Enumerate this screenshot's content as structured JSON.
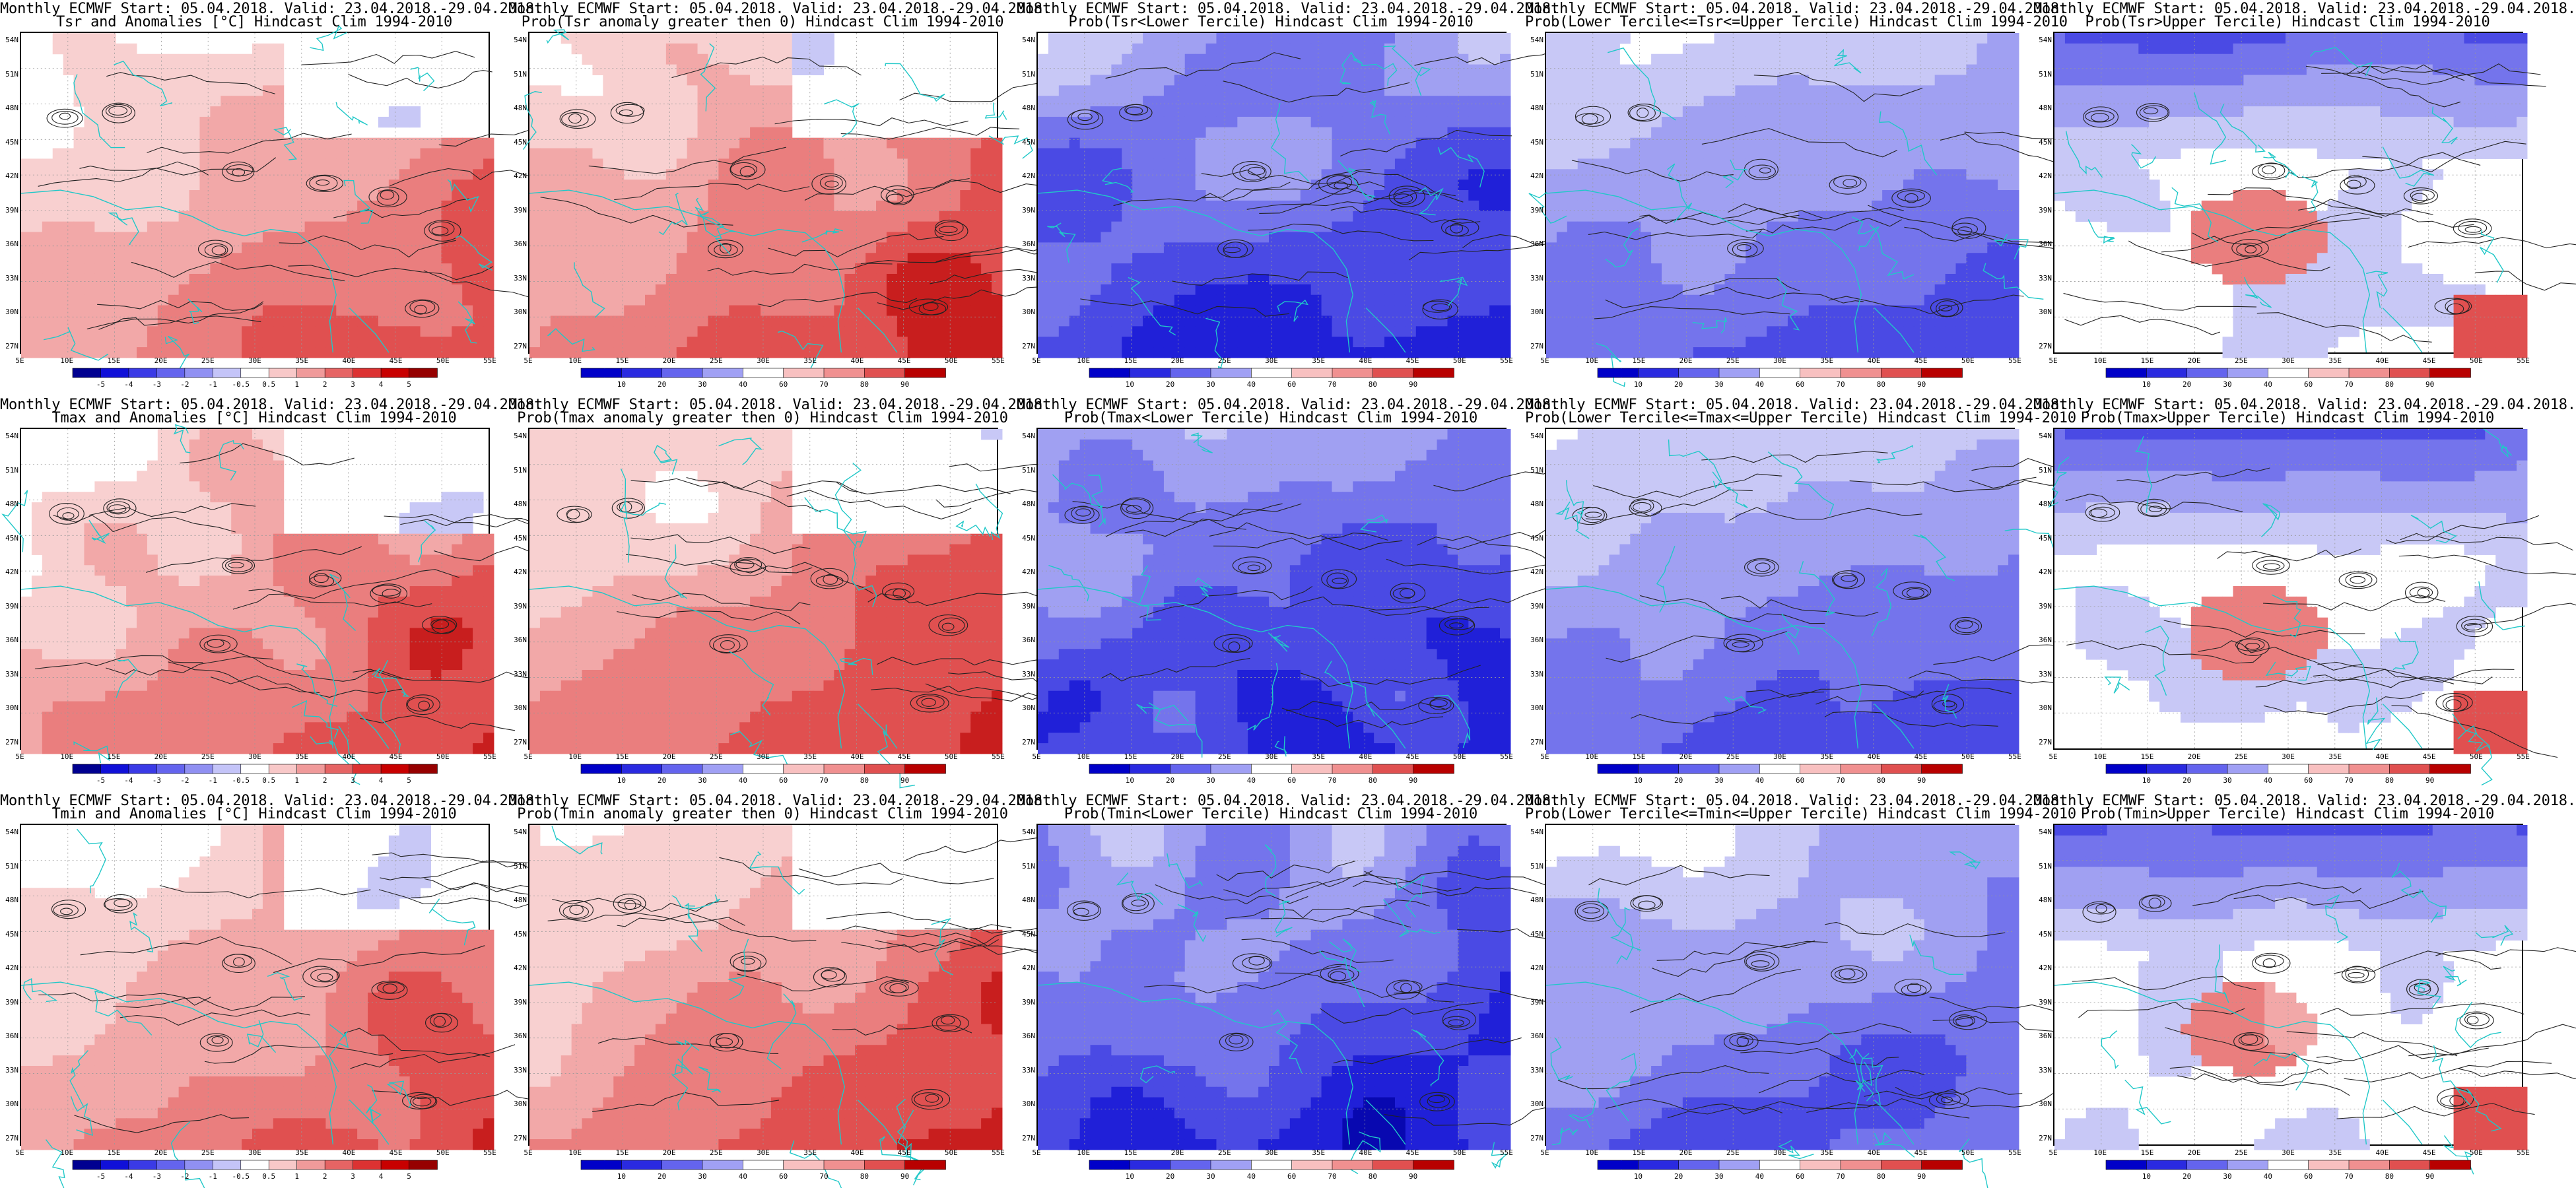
{
  "page": {
    "columns": 5,
    "rows": 3
  },
  "axis": {
    "lat_labels": [
      "54N",
      "51N",
      "48N",
      "45N",
      "42N",
      "39N",
      "36N",
      "33N",
      "30N",
      "27N"
    ],
    "lon_labels": [
      "5E",
      "10E",
      "15E",
      "20E",
      "25E",
      "30E",
      "35E",
      "40E",
      "45E",
      "50E",
      "55E"
    ]
  },
  "colorbars": {
    "anomaly": {
      "labels": [
        "-5",
        "-4",
        "-3",
        "-2",
        "-1",
        "-0.5",
        "0.5",
        "1",
        "2",
        "3",
        "4",
        "5"
      ],
      "colors": [
        "#000090",
        "#1010d8",
        "#3a3ae6",
        "#6464ee",
        "#9090f2",
        "#c4c4f8",
        "#ffffff",
        "#f8c8c8",
        "#f09a9a",
        "#e66464",
        "#dc3232",
        "#c80000",
        "#960000"
      ]
    },
    "probability": {
      "labels": [
        "10",
        "20",
        "30",
        "40",
        "60",
        "70",
        "80",
        "90"
      ],
      "colors": [
        "#0000c8",
        "#2a2ae0",
        "#6464ee",
        "#a0a0f4",
        "#ffffff",
        "#f8c0c0",
        "#f09090",
        "#e05050",
        "#b80000"
      ]
    }
  },
  "panels": [
    {
      "id": "tsr-anom",
      "var": "Tsr",
      "kind": "anomaly",
      "title1": "Monthly ECMWF Start: 05.04.2018. Valid: 23.04.2018.-29.04.2018.",
      "title2": "Tsr and Anomalies [°C] Hindcast Clim 1994-2010",
      "colorbar": "anomaly",
      "tone": "warm",
      "intensity": 0.45
    },
    {
      "id": "tsr-prob-pos",
      "var": "Tsr",
      "kind": "prob_positive",
      "title1": "Monthly ECMWF Start: 05.04.2018. Valid: 23.04.2018.-29.04.2018.",
      "title2": "Prob(Tsr anomaly greater then 0) Hindcast Clim 1994-2010",
      "colorbar": "probability",
      "tone": "warm",
      "intensity": 0.6
    },
    {
      "id": "tsr-prob-lower",
      "var": "Tsr",
      "kind": "prob_lower",
      "title1": "Monthly ECMWF Start: 05.04.2018. Valid: 23.04.2018.-29.04.2018.",
      "title2": "Prob(Tsr<Lower Tercile) Hindcast Clim 1994-2010",
      "colorbar": "probability",
      "tone": "cold",
      "intensity": 0.9
    },
    {
      "id": "tsr-prob-middle",
      "var": "Tsr",
      "kind": "prob_middle",
      "title1": "Monthly ECMWF Start: 05.04.2018. Valid: 23.04.2018.-29.04.2018.",
      "title2": "Prob(Lower Tercile<=Tsr<=Upper Tercile) Hindcast Clim 1994-2010",
      "colorbar": "probability",
      "tone": "cold",
      "intensity": 0.55
    },
    {
      "id": "tsr-prob-upper",
      "var": "Tsr",
      "kind": "prob_upper",
      "title1": "Monthly ECMWF Start: 05.04.2018. Valid: 23.04.2018.-29.04.2018.",
      "title2": "Prob(Tsr>Upper Tercile) Hindcast Clim 1994-2010",
      "colorbar": "probability",
      "tone": "mixed",
      "intensity": 0.6
    },
    {
      "id": "tmax-anom",
      "var": "Tmax",
      "kind": "anomaly",
      "title1": "Monthly ECMWF Start: 05.04.2018. Valid: 23.04.2018.-29.04.2018.",
      "title2": "Tmax and Anomalies [°C] Hindcast Clim 1994-2010",
      "colorbar": "anomaly",
      "tone": "warm",
      "intensity": 0.5
    },
    {
      "id": "tmax-prob-pos",
      "var": "Tmax",
      "kind": "prob_positive",
      "title1": "Monthly ECMWF Start: 05.04.2018. Valid: 23.04.2018.-29.04.2018.",
      "title2": "Prob(Tmax anomaly greater then 0) Hindcast Clim 1994-2010",
      "colorbar": "probability",
      "tone": "warm",
      "intensity": 0.6
    },
    {
      "id": "tmax-prob-lower",
      "var": "Tmax",
      "kind": "prob_lower",
      "title1": "Monthly ECMWF Start: 05.04.2018. Valid: 23.04.2018.-29.04.2018.",
      "title2": "Prob(Tmax<Lower Tercile) Hindcast Clim 1994-2010",
      "colorbar": "probability",
      "tone": "cold",
      "intensity": 0.9
    },
    {
      "id": "tmax-prob-middle",
      "var": "Tmax",
      "kind": "prob_middle",
      "title1": "Monthly ECMWF Start: 05.04.2018. Valid: 23.04.2018.-29.04.2018.",
      "title2": "Prob(Lower Tercile<=Tmax<=Upper Tercile) Hindcast Clim 1994-2010",
      "colorbar": "probability",
      "tone": "cold",
      "intensity": 0.55
    },
    {
      "id": "tmax-prob-upper",
      "var": "Tmax",
      "kind": "prob_upper",
      "title1": "Monthly ECMWF Start: 05.04.2018. Valid: 23.04.2018.-29.04.2018.",
      "title2": "Prob(Tmax>Upper Tercile) Hindcast Clim 1994-2010",
      "colorbar": "probability",
      "tone": "mixed",
      "intensity": 0.6
    },
    {
      "id": "tmin-anom",
      "var": "Tmin",
      "kind": "anomaly",
      "title1": "Monthly ECMWF Start: 05.04.2018. Valid: 23.04.2018.-29.04.2018.",
      "title2": "Tmin and Anomalies [°C] Hindcast Clim 1994-2010",
      "colorbar": "anomaly",
      "tone": "warm",
      "intensity": 0.45
    },
    {
      "id": "tmin-prob-pos",
      "var": "Tmin",
      "kind": "prob_positive",
      "title1": "Monthly ECMWF Start: 05.04.2018. Valid: 23.04.2018.-29.04.2018.",
      "title2": "Prob(Tmin anomaly greater then 0) Hindcast Clim 1994-2010",
      "colorbar": "probability",
      "tone": "warm",
      "intensity": 0.6
    },
    {
      "id": "tmin-prob-lower",
      "var": "Tmin",
      "kind": "prob_lower",
      "title1": "Monthly ECMWF Start: 05.04.2018. Valid: 23.04.2018.-29.04.2018.",
      "title2": "Prob(Tmin<Lower Tercile) Hindcast Clim 1994-2010",
      "colorbar": "probability",
      "tone": "cold",
      "intensity": 0.9
    },
    {
      "id": "tmin-prob-middle",
      "var": "Tmin",
      "kind": "prob_middle",
      "title1": "Monthly ECMWF Start: 05.04.2018. Valid: 23.04.2018.-29.04.2018.",
      "title2": "Prob(Lower Tercile<=Tmin<=Upper Tercile) Hindcast Clim 1994-2010",
      "colorbar": "probability",
      "tone": "cold",
      "intensity": 0.55
    },
    {
      "id": "tmin-prob-upper",
      "var": "Tmin",
      "kind": "prob_upper",
      "title1": "Monthly ECMWF Start: 05.04.2018. Valid: 23.04.2018.-29.04.2018.",
      "title2": "Prob(Tmin>Upper Tercile) Hindcast Clim 1994-2010",
      "colorbar": "probability",
      "tone": "mixed",
      "intensity": 0.6
    }
  ]
}
